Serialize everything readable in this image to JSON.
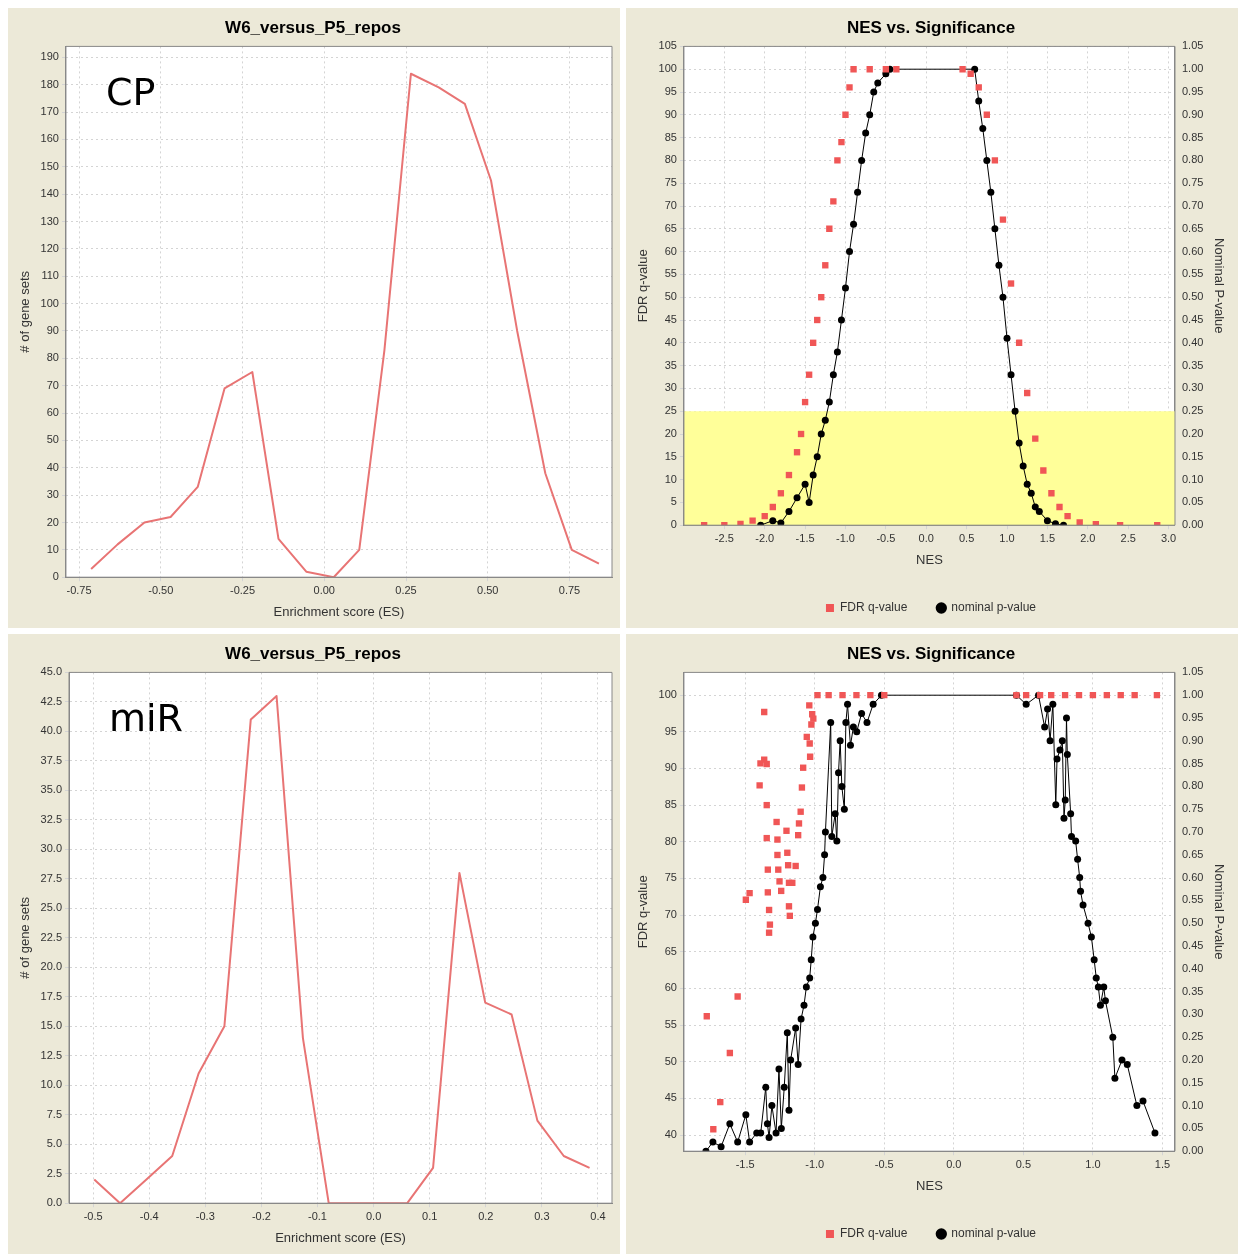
{
  "chart_data": [
    {
      "type": "line",
      "title": "W6_versus_P5_repos",
      "xlabel": "Enrichment score (ES)",
      "ylabel": "# of gene sets",
      "annotations": [
        "CP"
      ],
      "color": "#e87474",
      "grid": true,
      "x": [
        -0.713,
        -0.632,
        -0.55,
        -0.47,
        -0.387,
        -0.305,
        -0.22,
        -0.14,
        -0.055,
        0.029,
        0.107,
        0.184,
        0.265,
        0.35,
        0.43,
        0.51,
        0.59,
        0.676,
        0.757,
        0.84
      ],
      "values": [
        3,
        12,
        20,
        22,
        33,
        69,
        75,
        14,
        2,
        0,
        10,
        83,
        184,
        179,
        173,
        145,
        90,
        38,
        10,
        5
      ],
      "xlim": [
        -0.79,
        0.88
      ],
      "ylim": [
        0,
        194
      ],
      "xticks": [
        -0.75,
        {
          "value": -0.5,
          "label": "-0.50"
        },
        -0.25,
        {
          "value": 0,
          "label": "0.00"
        },
        0.25,
        {
          "value": 0.5,
          "label": "0.50"
        },
        0.75
      ],
      "yticks": [
        0,
        10,
        20,
        30,
        40,
        50,
        60,
        70,
        80,
        90,
        100,
        110,
        120,
        130,
        140,
        150,
        160,
        170,
        180,
        190
      ]
    },
    {
      "type": "scatter",
      "title": "NES vs. Significance",
      "xlabel": "NES",
      "ylabel": "FDR q-value",
      "y2label": "Nominal P-value",
      "grid": true,
      "legend": "bottom",
      "series": [
        {
          "name": "FDR q-value",
          "type": "scatter",
          "marker": "square",
          "color": "#f05656",
          "x": [
            -2.75,
            -2.5,
            -2.3,
            -2.15,
            -2.0,
            -1.9,
            -1.8,
            -1.7,
            -1.6,
            -1.55,
            -1.5,
            -1.45,
            -1.4,
            -1.35,
            -1.3,
            -1.25,
            -1.2,
            -1.15,
            -1.1,
            -1.05,
            -1.0,
            -0.95,
            -0.9,
            -0.7,
            -0.5,
            -0.37,
            0.45,
            0.55,
            0.65,
            0.75,
            0.85,
            0.95,
            1.05,
            1.15,
            1.25,
            1.35,
            1.45,
            1.55,
            1.65,
            1.75,
            1.9,
            2.1,
            2.4,
            2.86
          ],
          "values": [
            0,
            0,
            0.3,
            1,
            2,
            4,
            7,
            11,
            16,
            20,
            27,
            33,
            40,
            45,
            50,
            57,
            65,
            71,
            80,
            84,
            90,
            96,
            100,
            100,
            100,
            100,
            100,
            99,
            96,
            90,
            80,
            67,
            53,
            40,
            29,
            19,
            12,
            7,
            4,
            2,
            0.6,
            0.2,
            0,
            0
          ]
        },
        {
          "name": "nominal p-value",
          "type": "line",
          "marker": "circle",
          "axis": "y2",
          "color": "#000000",
          "x": [
            -2.05,
            -1.9,
            -1.8,
            -1.7,
            -1.6,
            -1.5,
            -1.45,
            -1.4,
            -1.35,
            -1.3,
            -1.25,
            -1.2,
            -1.15,
            -1.1,
            -1.05,
            -1.0,
            -0.95,
            -0.9,
            -0.85,
            -0.8,
            -0.75,
            -0.7,
            -0.65,
            -0.6,
            -0.5,
            -0.45,
            0.6,
            0.65,
            0.7,
            0.75,
            0.8,
            0.85,
            0.9,
            0.95,
            1.0,
            1.05,
            1.1,
            1.15,
            1.2,
            1.25,
            1.3,
            1.35,
            1.4,
            1.5,
            1.6,
            1.7
          ],
          "values": [
            0,
            0.01,
            0.005,
            0.03,
            0.06,
            0.09,
            0.05,
            0.11,
            0.15,
            0.2,
            0.23,
            0.27,
            0.33,
            0.38,
            0.45,
            0.52,
            0.6,
            0.66,
            0.73,
            0.8,
            0.86,
            0.9,
            0.95,
            0.97,
            0.99,
            1.0,
            1.0,
            0.93,
            0.87,
            0.8,
            0.73,
            0.65,
            0.57,
            0.5,
            0.41,
            0.33,
            0.25,
            0.18,
            0.13,
            0.09,
            0.07,
            0.04,
            0.03,
            0.01,
            0.003,
            0
          ]
        }
      ],
      "bands": [
        {
          "axis": "y",
          "from": 0,
          "to": 25,
          "color": "#ffff99"
        }
      ],
      "xlim": [
        -3.0,
        3.08
      ],
      "ylim": [
        0,
        105
      ],
      "y2lim": [
        0,
        1.05
      ],
      "xticks": [
        -2.5,
        {
          "value": -2,
          "label": "-2.0"
        },
        -1.5,
        {
          "value": -1,
          "label": "-1.0"
        },
        -0.5,
        {
          "value": 0,
          "label": "0.0"
        },
        0.5,
        {
          "value": 1,
          "label": "1.0"
        },
        1.5,
        {
          "value": 2,
          "label": "2.0"
        },
        2.5,
        {
          "value": 3,
          "label": "3.0"
        }
      ],
      "yticks": [
        0,
        5,
        10,
        15,
        20,
        25,
        30,
        35,
        40,
        45,
        50,
        55,
        60,
        65,
        70,
        75,
        80,
        85,
        90,
        95,
        100,
        105
      ],
      "y2ticks": [
        {
          "value": 0,
          "label": "0.00"
        },
        0.05,
        {
          "value": 0.1,
          "label": "0.10"
        },
        0.15,
        {
          "value": 0.2,
          "label": "0.20"
        },
        0.25,
        {
          "value": 0.3,
          "label": "0.30"
        },
        0.35,
        {
          "value": 0.4,
          "label": "0.40"
        },
        0.45,
        {
          "value": 0.5,
          "label": "0.50"
        },
        0.55,
        {
          "value": 0.6,
          "label": "0.60"
        },
        0.65,
        {
          "value": 0.7,
          "label": "0.70"
        },
        0.75,
        {
          "value": 0.8,
          "label": "0.80"
        },
        0.85,
        {
          "value": 0.9,
          "label": "0.90"
        },
        0.95,
        {
          "value": 1,
          "label": "1.00"
        },
        1.05
      ]
    },
    {
      "type": "line",
      "title": "W6_versus_P5_repos",
      "xlabel": "Enrichment score (ES)",
      "ylabel": "# of gene sets",
      "annotations": [
        "miR"
      ],
      "color": "#e87474",
      "grid": true,
      "x": [
        -0.498,
        -0.452,
        -0.405,
        -0.359,
        -0.312,
        -0.266,
        -0.219,
        -0.173,
        -0.126,
        -0.08,
        -0.033,
        0.013,
        0.06,
        0.106,
        0.153,
        0.199,
        0.246,
        0.292,
        0.339,
        0.385
      ],
      "values": [
        2,
        0,
        2,
        4,
        11,
        15,
        41,
        43,
        14,
        0,
        0,
        0,
        0,
        3,
        28,
        17,
        16,
        7,
        4,
        3
      ],
      "xlim": [
        -0.543,
        0.425
      ],
      "ylim": [
        0,
        45
      ],
      "xticks": [
        -0.5,
        -0.4,
        -0.3,
        -0.2,
        -0.1,
        {
          "value": 0,
          "label": "0.0"
        },
        0.1,
        0.2,
        0.3,
        0.4
      ],
      "yticks": [
        {
          "value": 0,
          "label": "0.0"
        },
        2.5,
        {
          "value": 5,
          "label": "5.0"
        },
        7.5,
        {
          "value": 10,
          "label": "10.0"
        },
        12.5,
        {
          "value": 15,
          "label": "15.0"
        },
        17.5,
        {
          "value": 20,
          "label": "20.0"
        },
        22.5,
        {
          "value": 25,
          "label": "25.0"
        },
        27.5,
        {
          "value": 30,
          "label": "30.0"
        },
        32.5,
        {
          "value": 35,
          "label": "35.0"
        },
        37.5,
        {
          "value": 40,
          "label": "40.0"
        },
        42.5,
        {
          "value": 45,
          "label": "45.0"
        }
      ]
    },
    {
      "type": "scatter",
      "title": "NES vs. Significance",
      "xlabel": "NES",
      "ylabel": "FDR q-value",
      "y2label": "Nominal P-value",
      "grid": true,
      "legend": "bottom",
      "series": [
        {
          "name": "FDR q-value",
          "type": "scatter",
          "marker": "square",
          "color": "#f05656",
          "x": [
            -1.776,
            -1.729,
            -1.679,
            -1.61,
            -1.554,
            -1.495,
            -1.468,
            -1.396,
            -1.39,
            -1.363,
            -1.363,
            -1.345,
            -1.345,
            -1.345,
            -1.337,
            -1.337,
            -1.328,
            -1.322,
            -1.328,
            -1.274,
            -1.268,
            -1.268,
            -1.262,
            -1.253,
            -1.241,
            -1.203,
            -1.197,
            -1.191,
            -1.185,
            -1.185,
            -1.179,
            -1.161,
            -1.137,
            -1.119,
            -1.113,
            -1.101,
            -1.092,
            -1.083,
            -1.033,
            -1.036,
            -1.057,
            -1.024,
            -1.018,
            -1.039,
            -1.01,
            -0.98,
            -0.9,
            -0.8,
            -0.7,
            -0.6,
            -0.5,
            0.45,
            0.52,
            0.62,
            0.7,
            0.8,
            0.9,
            1.0,
            1.1,
            1.2,
            1.3,
            1.46
          ],
          "values": [
            56.2,
            40.8,
            44.5,
            51.2,
            58.9,
            72.1,
            73,
            87.7,
            90.7,
            91.2,
            97.7,
            90.6,
            85,
            80.5,
            76.2,
            73.1,
            70.7,
            68.7,
            67.6,
            82.7,
            80.3,
            78.2,
            76.2,
            74.6,
            73.3,
            81.5,
            78.5,
            76.8,
            74.4,
            71.2,
            69.9,
            74.4,
            76.7,
            80.9,
            82.5,
            84.1,
            87.4,
            90.1,
            91.6,
            93.4,
            94.3,
            96,
            97.4,
            98.6,
            96.8,
            100,
            100,
            100,
            100,
            100,
            100,
            100,
            100,
            100,
            100,
            100,
            100,
            100,
            100,
            100,
            100,
            100
          ]
        },
        {
          "name": "nominal p-value",
          "type": "line",
          "marker": "circle",
          "axis": "y2",
          "color": "#000000",
          "x": [
            -1.782,
            -1.732,
            -1.673,
            -1.61,
            -1.554,
            -1.495,
            -1.468,
            -1.417,
            -1.388,
            -1.352,
            -1.34,
            -1.328,
            -1.308,
            -1.278,
            -1.257,
            -1.24,
            -1.219,
            -1.197,
            -1.185,
            -1.173,
            -1.137,
            -1.119,
            -1.098,
            -1.077,
            -1.06,
            -1.036,
            -1.025,
            -1.013,
            -0.995,
            -0.98,
            -0.959,
            -0.941,
            -0.929,
            -0.923,
            -0.885,
            -0.877,
            -0.853,
            -0.841,
            -0.829,
            -0.817,
            -0.805,
            -0.787,
            -0.776,
            -0.764,
            -0.743,
            -0.722,
            -0.698,
            -0.663,
            -0.624,
            -0.58,
            -0.52,
            0.45,
            0.52,
            0.609,
            0.653,
            0.674,
            0.692,
            0.712,
            0.733,
            0.742,
            0.763,
            0.78,
            0.792,
            0.801,
            0.81,
            0.816,
            0.84,
            0.846,
            0.876,
            0.89,
            0.905,
            0.911,
            0.929,
            0.965,
            0.989,
            1.009,
            1.024,
            1.039,
            1.054,
            1.078,
            1.09,
            1.143,
            1.158,
            1.209,
            1.247,
            1.316,
            1.36,
            1.446
          ],
          "values": [
            0,
            0.02,
            0.01,
            0.06,
            0.02,
            0.08,
            0.02,
            0.04,
            0.04,
            0.14,
            0.06,
            0.03,
            0.1,
            0.04,
            0.18,
            0.05,
            0.14,
            0.26,
            0.09,
            0.2,
            0.27,
            0.19,
            0.29,
            0.32,
            0.36,
            0.38,
            0.42,
            0.47,
            0.5,
            0.53,
            0.58,
            0.6,
            0.65,
            0.7,
            0.94,
            0.69,
            0.74,
            0.68,
            0.83,
            0.9,
            0.8,
            0.75,
            0.94,
            0.98,
            0.89,
            0.93,
            0.92,
            0.96,
            0.94,
            0.98,
            1.0,
            1.0,
            0.98,
            1.0,
            0.93,
            0.97,
            0.9,
            0.98,
            0.76,
            0.86,
            0.88,
            0.9,
            0.73,
            0.77,
            0.95,
            0.87,
            0.74,
            0.69,
            0.68,
            0.64,
            0.6,
            0.57,
            0.54,
            0.5,
            0.47,
            0.42,
            0.38,
            0.36,
            0.32,
            0.36,
            0.33,
            0.25,
            0.16,
            0.2,
            0.19,
            0.1,
            0.11,
            0.04
          ]
        }
      ],
      "xlim": [
        -1.94,
        1.59
      ],
      "ylim": [
        37.8,
        103.1
      ],
      "y2lim": [
        0,
        1.05
      ],
      "xticks": [
        -1.5,
        {
          "value": -1,
          "label": "-1.0"
        },
        -0.5,
        {
          "value": 0,
          "label": "0.0"
        },
        0.5,
        {
          "value": 1,
          "label": "1.0"
        },
        1.5
      ],
      "yticks": [
        40,
        45,
        50,
        55,
        60,
        65,
        70,
        75,
        80,
        85,
        90,
        95,
        100
      ],
      "y2ticks": [
        {
          "value": 0,
          "label": "0.00"
        },
        0.05,
        {
          "value": 0.1,
          "label": "0.10"
        },
        0.15,
        {
          "value": 0.2,
          "label": "0.20"
        },
        0.25,
        {
          "value": 0.3,
          "label": "0.30"
        },
        0.35,
        {
          "value": 0.4,
          "label": "0.40"
        },
        0.45,
        {
          "value": 0.5,
          "label": "0.50"
        },
        0.55,
        {
          "value": 0.6,
          "label": "0.60"
        },
        0.65,
        {
          "value": 0.7,
          "label": "0.70"
        },
        0.75,
        {
          "value": 0.8,
          "label": "0.80"
        },
        0.85,
        {
          "value": 0.9,
          "label": "0.90"
        },
        0.95,
        {
          "value": 1,
          "label": "1.00"
        },
        1.05
      ]
    }
  ]
}
